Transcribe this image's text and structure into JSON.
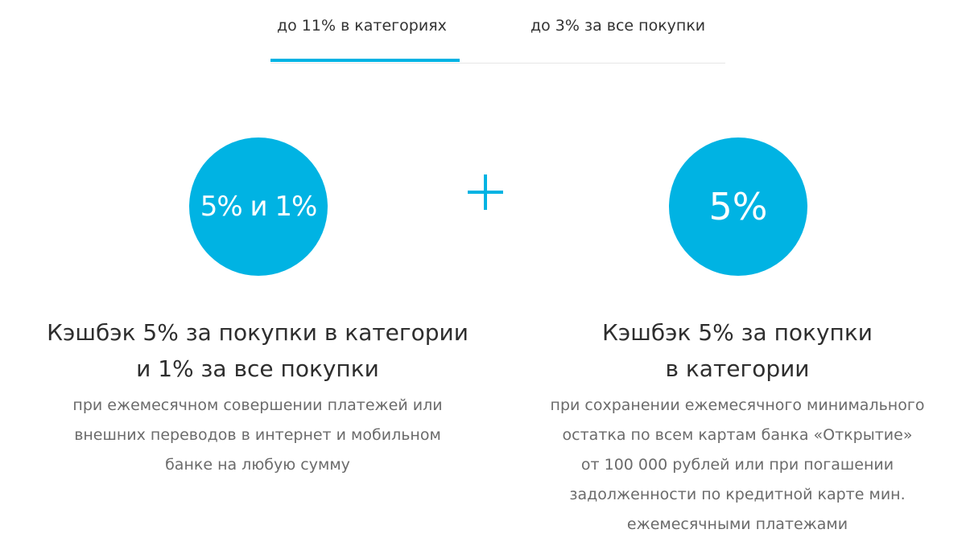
{
  "tabs": [
    {
      "label": "до 11% в категориях",
      "active": true
    },
    {
      "label": "до 3% за все покупки",
      "active": false
    }
  ],
  "accent_color": "#00b3e3",
  "left": {
    "circle_text": "5% и 1%",
    "heading_lines": [
      "Кэшбэк 5% за покупки в категории",
      "и 1% за все покупки"
    ],
    "description_lines": [
      "при ежемесячном совершении платежей или",
      "внешних переводов в интернет и мобильном",
      "банке на любую сумму"
    ]
  },
  "separator": "plus-icon",
  "right": {
    "circle_text": "5%",
    "heading_lines": [
      "Кэшбэк 5% за покупки",
      "в категории"
    ],
    "description_lines": [
      "при сохранении ежемесячного минимального",
      "остатка по всем картам банка «Открытие»",
      "от 100 000 рублей или при погашении",
      "задолженности по кредитной карте мин.",
      "ежемесячными платежами"
    ]
  }
}
